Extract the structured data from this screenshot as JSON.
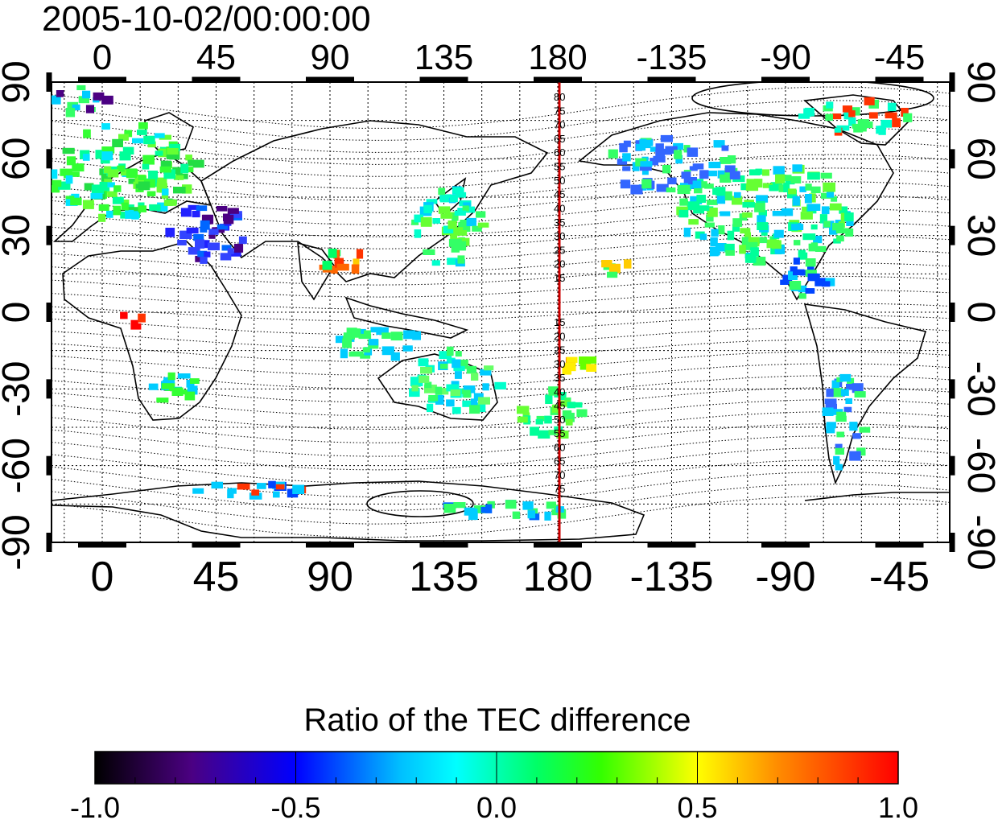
{
  "title": "2005-10-02/00:00:00",
  "map": {
    "lon_ticks_top": [
      "0",
      "45",
      "90",
      "135",
      "180",
      "-135",
      "-90",
      "-45"
    ],
    "lon_ticks_bottom": [
      "0",
      "45",
      "90",
      "135",
      "180",
      "-135",
      "-90",
      "-45"
    ],
    "lat_ticks_left": [
      "90",
      "60",
      "30",
      "0",
      "-30",
      "-60",
      "-90"
    ],
    "lat_ticks_right": [
      "90",
      "60",
      "30",
      "0",
      "-30",
      "-60",
      "-90"
    ],
    "meridian_labels_north": [
      "80",
      "75",
      "70",
      "65",
      "60",
      "55",
      "50",
      "45",
      "40",
      "35",
      "30",
      "25",
      "20",
      "15"
    ],
    "meridian_labels_south": [
      "15",
      "20",
      "25",
      "30",
      "35",
      "40",
      "45",
      "50",
      "55",
      "60",
      "65",
      "70",
      "75"
    ],
    "highlight_meridian": 180,
    "highlight_color": "#cc0000"
  },
  "colorbar": {
    "title": "Ratio of the TEC difference",
    "ticks": [
      "-1.0",
      "-0.5",
      "0.0",
      "0.5",
      "1.0"
    ],
    "range": [
      -1.0,
      1.0
    ],
    "colors": [
      "#000000",
      "#4b0082",
      "#0000ff",
      "#00ffff",
      "#00ff00",
      "#ffff00",
      "#ff8c00",
      "#ff0000"
    ]
  }
}
